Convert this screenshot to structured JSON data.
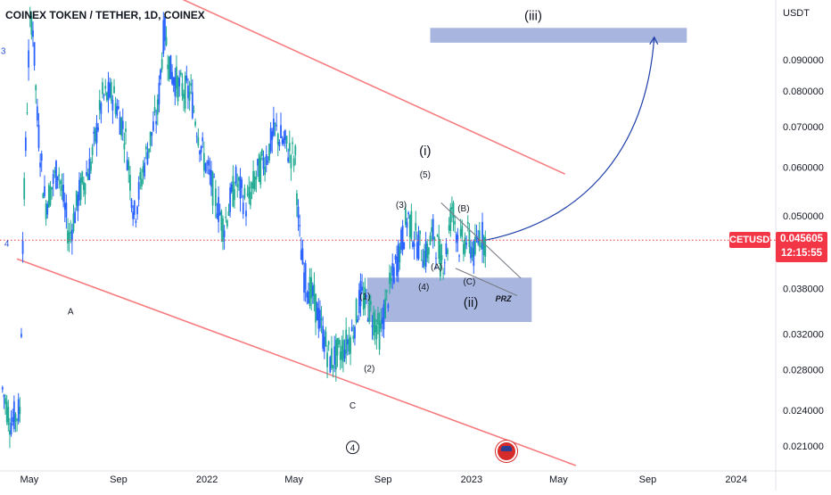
{
  "header": {
    "title": "COINEX TOKEN / TETHER, 1D, COINEX"
  },
  "price_axis": {
    "currency": "USDT",
    "labels": [
      "0.090000",
      "0.080000",
      "0.070000",
      "0.060000",
      "0.050000",
      "0.038000",
      "0.032000",
      "0.028000",
      "0.024000",
      "0.021000"
    ]
  },
  "time_axis": {
    "labels": [
      "May",
      "Sep",
      "2022",
      "May",
      "Sep",
      "2023",
      "May",
      "Sep",
      "2024"
    ]
  },
  "current_price": {
    "symbol": "CETUSDT",
    "price": "0.045605",
    "countdown": "12:15:55",
    "color": "#f23645"
  },
  "colors": {
    "up": "#26a69a",
    "down": "#2962ff",
    "candle_up": "#22ab94",
    "candle_down": "#f23645",
    "channel": "#f77c80",
    "zone": "#8fa1d6",
    "arrow": "#1e3fa8"
  },
  "chart_data": {
    "type": "candlestick",
    "symbol": "CETUSDT",
    "timeframe": "1D",
    "exchange": "COINEX",
    "yscale": "log",
    "ylim": [
      0.0195,
      0.112
    ],
    "x_range": [
      "2021-03-24",
      "2024-01-31"
    ],
    "close_series": [
      {
        "date": "2021-03-25",
        "close": 0.026
      },
      {
        "date": "2021-04-05",
        "close": 0.023
      },
      {
        "date": "2021-04-18",
        "close": 0.024
      },
      {
        "date": "2021-04-22",
        "close": 0.046
      },
      {
        "date": "2021-05-01",
        "close": 0.098
      },
      {
        "date": "2021-05-05",
        "close": 0.108
      },
      {
        "date": "2021-05-12",
        "close": 0.072
      },
      {
        "date": "2021-05-23",
        "close": 0.052
      },
      {
        "date": "2021-06-10",
        "close": 0.06
      },
      {
        "date": "2021-06-25",
        "close": 0.046
      },
      {
        "date": "2021-07-10",
        "close": 0.055
      },
      {
        "date": "2021-07-25",
        "close": 0.061
      },
      {
        "date": "2021-08-10",
        "close": 0.078
      },
      {
        "date": "2021-08-25",
        "close": 0.079
      },
      {
        "date": "2021-09-10",
        "close": 0.068
      },
      {
        "date": "2021-09-23",
        "close": 0.05
      },
      {
        "date": "2021-10-08",
        "close": 0.062
      },
      {
        "date": "2021-10-25",
        "close": 0.074
      },
      {
        "date": "2021-11-03",
        "close": 0.102
      },
      {
        "date": "2021-11-12",
        "close": 0.086
      },
      {
        "date": "2021-11-25",
        "close": 0.081
      },
      {
        "date": "2021-12-10",
        "close": 0.079
      },
      {
        "date": "2021-12-25",
        "close": 0.064
      },
      {
        "date": "2022-01-10",
        "close": 0.055
      },
      {
        "date": "2022-01-24",
        "close": 0.048
      },
      {
        "date": "2022-02-10",
        "close": 0.057
      },
      {
        "date": "2022-02-25",
        "close": 0.052
      },
      {
        "date": "2022-03-10",
        "close": 0.058
      },
      {
        "date": "2022-03-25",
        "close": 0.063
      },
      {
        "date": "2022-04-05",
        "close": 0.069
      },
      {
        "date": "2022-04-20",
        "close": 0.065
      },
      {
        "date": "2022-05-03",
        "close": 0.062
      },
      {
        "date": "2022-05-08",
        "close": 0.047
      },
      {
        "date": "2022-05-15",
        "close": 0.04
      },
      {
        "date": "2022-05-30",
        "close": 0.036
      },
      {
        "date": "2022-06-10",
        "close": 0.032
      },
      {
        "date": "2022-06-20",
        "close": 0.029
      },
      {
        "date": "2022-07-05",
        "close": 0.03
      },
      {
        "date": "2022-07-20",
        "close": 0.032
      },
      {
        "date": "2022-08-01",
        "close": 0.037
      },
      {
        "date": "2022-08-15",
        "close": 0.035
      },
      {
        "date": "2022-08-28",
        "close": 0.032
      },
      {
        "date": "2022-09-05",
        "close": 0.036
      },
      {
        "date": "2022-09-15",
        "close": 0.04
      },
      {
        "date": "2022-09-28",
        "close": 0.046
      },
      {
        "date": "2022-10-05",
        "close": 0.05
      },
      {
        "date": "2022-10-15",
        "close": 0.046
      },
      {
        "date": "2022-10-30",
        "close": 0.043
      },
      {
        "date": "2022-11-10",
        "close": 0.047
      },
      {
        "date": "2022-11-20",
        "close": 0.042
      },
      {
        "date": "2022-11-28",
        "close": 0.044
      },
      {
        "date": "2022-12-05",
        "close": 0.052
      },
      {
        "date": "2022-12-15",
        "close": 0.045
      },
      {
        "date": "2022-12-28",
        "close": 0.046
      },
      {
        "date": "2023-01-05",
        "close": 0.043
      },
      {
        "date": "2023-01-12",
        "close": 0.047
      },
      {
        "date": "2023-01-20",
        "close": 0.0456
      }
    ],
    "channel_lines": [
      {
        "from": [
          "2021-10-25",
          0.118
        ],
        "to": [
          "2023-05-10",
          0.0585
        ]
      },
      {
        "from": [
          "2021-04-14",
          0.0425
        ],
        "to": [
          "2023-05-25",
          0.0195
        ]
      }
    ],
    "zones": [
      {
        "label": "(iii)",
        "from": "2022-11-05",
        "to": "2023-10-25",
        "low": 0.096,
        "high": 0.1015
      },
      {
        "label": "(ii)",
        "from": "2022-08-10",
        "to": "2023-03-25",
        "low": 0.0335,
        "high": 0.0396
      }
    ],
    "wedge_lines": [
      {
        "from": [
          "2022-11-20",
          0.0525
        ],
        "to": [
          "2023-03-10",
          0.0395
        ]
      },
      {
        "from": [
          "2022-12-10",
          0.041
        ],
        "to": [
          "2023-03-05",
          0.037
        ]
      }
    ],
    "projection": {
      "from": [
        "2023-01-20",
        0.0456
      ],
      "to": [
        "2023-09-10",
        0.098
      ]
    },
    "wave_labels": [
      {
        "text": "3",
        "date": "2021-03-26",
        "price": 0.092
      },
      {
        "text": "4",
        "date": "2021-03-31",
        "price": 0.0445
      },
      {
        "text": "A",
        "date": "2021-06-27",
        "price": 0.0345
      },
      {
        "text": "C",
        "date": "2022-07-21",
        "price": 0.0242
      },
      {
        "text": "4",
        "date": "2022-07-21",
        "price": 0.0206,
        "circled": true
      },
      {
        "text": "(1)",
        "date": "2022-08-07",
        "price": 0.0365
      },
      {
        "text": "(2)",
        "date": "2022-08-13",
        "price": 0.0278
      },
      {
        "text": "(3)",
        "date": "2022-09-26",
        "price": 0.0515
      },
      {
        "text": "(4)",
        "date": "2022-10-27",
        "price": 0.0378
      },
      {
        "text": "(i)",
        "date": "2022-10-29",
        "price": 0.0628
      },
      {
        "text": "(5)",
        "date": "2022-10-29",
        "price": 0.0578
      },
      {
        "text": "(A)",
        "date": "2022-11-14",
        "price": 0.0408
      },
      {
        "text": "(B)",
        "date": "2022-12-21",
        "price": 0.0508
      },
      {
        "text": "(C)",
        "date": "2022-12-29",
        "price": 0.0386
      },
      {
        "text": "(ii)",
        "date": "2022-12-31",
        "price": 0.0355
      },
      {
        "text": "PRZ",
        "date": "2023-02-14",
        "price": 0.0362
      },
      {
        "text": "(iii)",
        "date": "2023-03-27",
        "price": 0.1045
      }
    ]
  }
}
